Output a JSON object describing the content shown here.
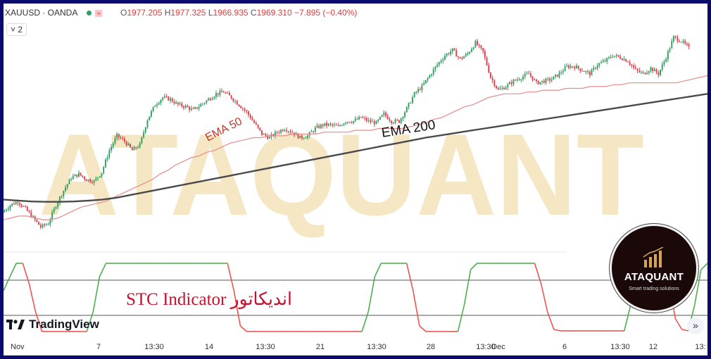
{
  "header": {
    "symbol": "XAUUSD · OANDA",
    "ohlc": {
      "open_label": "O",
      "open": "1977.205",
      "high_label": "H",
      "high": "1977.325",
      "low_label": "L",
      "low": "1966.935",
      "close_label": "C",
      "close": "1969.310",
      "change": "−7.895 (−0.40%)"
    },
    "zoom": "2"
  },
  "colors": {
    "bull": "#2e9e5e",
    "bear": "#e23b4a",
    "ema50": "#e88a8a",
    "ema200": "#4a4a4a",
    "stc_up": "#4caf50",
    "stc_down": "#ef5350",
    "watermark": "#f6e7c4",
    "label_red": "#c8102e"
  },
  "watermark_text": "ATAQUANT",
  "brand": {
    "tradingview": "TradingView",
    "badge_title": "ATAQUANT",
    "badge_subtitle": "Smart trading solutions"
  },
  "annotations": {
    "stc": "STC Indicator اندیکاتور",
    "ema50": "EMA 50",
    "ema200": "EMA 200"
  },
  "chart_data": {
    "type": "candlestick",
    "x_ticks": [
      "Nov",
      "7",
      "13:30",
      "14",
      "13:30",
      "21",
      "13:30",
      "28",
      "13:30",
      "Dec",
      "6",
      "13:30",
      "12",
      "13:"
    ],
    "price_path": [
      1944,
      1948,
      1950,
      1946,
      1941,
      1936,
      1938,
      1948,
      1956,
      1963,
      1965,
      1962,
      1961,
      1966,
      1978,
      1986,
      1983,
      1978,
      1981,
      1995,
      2003,
      2007,
      2006,
      2003,
      2002,
      2000,
      2003,
      2006,
      2009,
      2010,
      2007,
      2003,
      1999,
      1993,
      1987,
      1985,
      1988,
      1990,
      1988,
      1985,
      1986,
      1990,
      1992,
      1992,
      1991,
      1994,
      1994,
      1996,
      1994,
      1993,
      1998,
      1994,
      1994,
      2001,
      2009,
      2013,
      2019,
      2025,
      2030,
      2033,
      2028,
      2031,
      2037,
      2032,
      2018,
      2011,
      2013,
      2016,
      2018,
      2020,
      2015,
      2016,
      2017,
      2020,
      2024,
      2024,
      2022,
      2020,
      2025,
      2027,
      2030,
      2029,
      2027,
      2022,
      2020,
      2023,
      2020,
      2029,
      2040,
      2038,
      2034
    ],
    "ema50": [
      1940,
      1941,
      1942,
      1942,
      1941,
      1940,
      1940,
      1941,
      1943,
      1945,
      1947,
      1948,
      1949,
      1950,
      1952,
      1954,
      1956,
      1958,
      1960,
      1962,
      1965,
      1967,
      1970,
      1972,
      1974,
      1975,
      1977,
      1978,
      1980,
      1982,
      1983,
      1984,
      1985,
      1985,
      1986,
      1986,
      1986,
      1987,
      1987,
      1987,
      1987,
      1988,
      1988,
      1988,
      1988,
      1989,
      1989,
      1989,
      1990,
      1990,
      1990,
      1990,
      1991,
      1992,
      1993,
      1995,
      1996,
      1998,
      2000,
      2002,
      2003,
      2005,
      2007,
      2008,
      2009,
      2009,
      2009,
      2010,
      2010,
      2011,
      2011,
      2011,
      2012,
      2012,
      2012,
      2013,
      2013,
      2013,
      2014,
      2014,
      2015,
      2015,
      2015,
      2015,
      2015,
      2015,
      2015,
      2016,
      2017,
      2018,
      2019
    ],
    "ema200": [
      1951,
      1950.5,
      1950,
      1949.8,
      1949.8,
      1950,
      1950.4,
      1951,
      1952,
      1953.5,
      1955,
      1956.5,
      1958,
      1959.5,
      1961,
      1962.5,
      1964,
      1965.5,
      1967,
      1968.5,
      1970,
      1971.5,
      1973,
      1974.5,
      1976,
      1977.5,
      1979,
      1980.5,
      1982,
      1983.5,
      1985,
      1986.2,
      1987.4,
      1988.6,
      1989.8,
      1991,
      1992.2,
      1993.4,
      1994.6,
      1995.8,
      1997,
      1998.2,
      1999.4,
      2000.6,
      2001.8,
      2003,
      2004.2,
      2005.4,
      2006.6,
      2007.8,
      2009
    ],
    "stc": [
      60,
      80,
      99,
      99,
      70,
      30,
      2,
      2,
      2,
      2,
      2,
      2,
      2,
      2,
      30,
      80,
      99,
      99,
      99,
      99,
      99,
      99,
      99,
      99,
      99,
      99,
      99,
      99,
      99,
      99,
      99,
      99,
      99,
      99,
      99,
      99,
      60,
      10,
      2,
      2,
      2,
      2,
      2,
      2,
      2,
      2,
      2,
      2,
      2,
      2,
      2,
      2,
      2,
      2,
      2,
      2,
      2,
      30,
      80,
      99,
      99,
      99,
      99,
      99,
      60,
      10,
      2,
      2,
      2,
      2,
      2,
      2,
      40,
      90,
      99,
      99,
      99,
      99,
      99,
      99,
      99,
      99,
      99,
      99,
      70,
      30,
      5,
      3,
      3,
      3,
      3,
      3,
      3,
      3,
      3,
      3,
      3,
      3,
      40,
      90,
      99,
      99,
      99,
      99,
      70,
      20,
      5,
      3,
      40,
      90,
      99
    ],
    "stc_levels": [
      75,
      25
    ]
  }
}
